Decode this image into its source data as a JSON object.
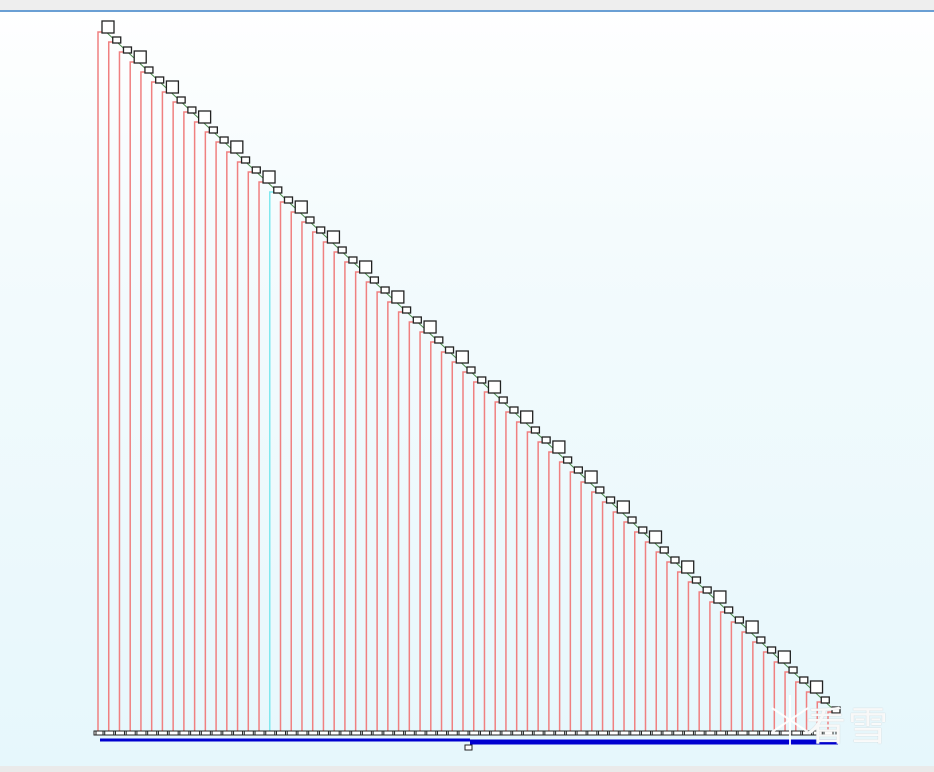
{
  "watermark": {
    "text": "看雪"
  },
  "colors": {
    "edge": "#f08080",
    "highlight_edge": "#7fe8ee",
    "node_border": "#222222",
    "step_edge": "#4a8a4a",
    "bottom_edge": "#0000d0",
    "background": "#e6f7fc"
  }
}
